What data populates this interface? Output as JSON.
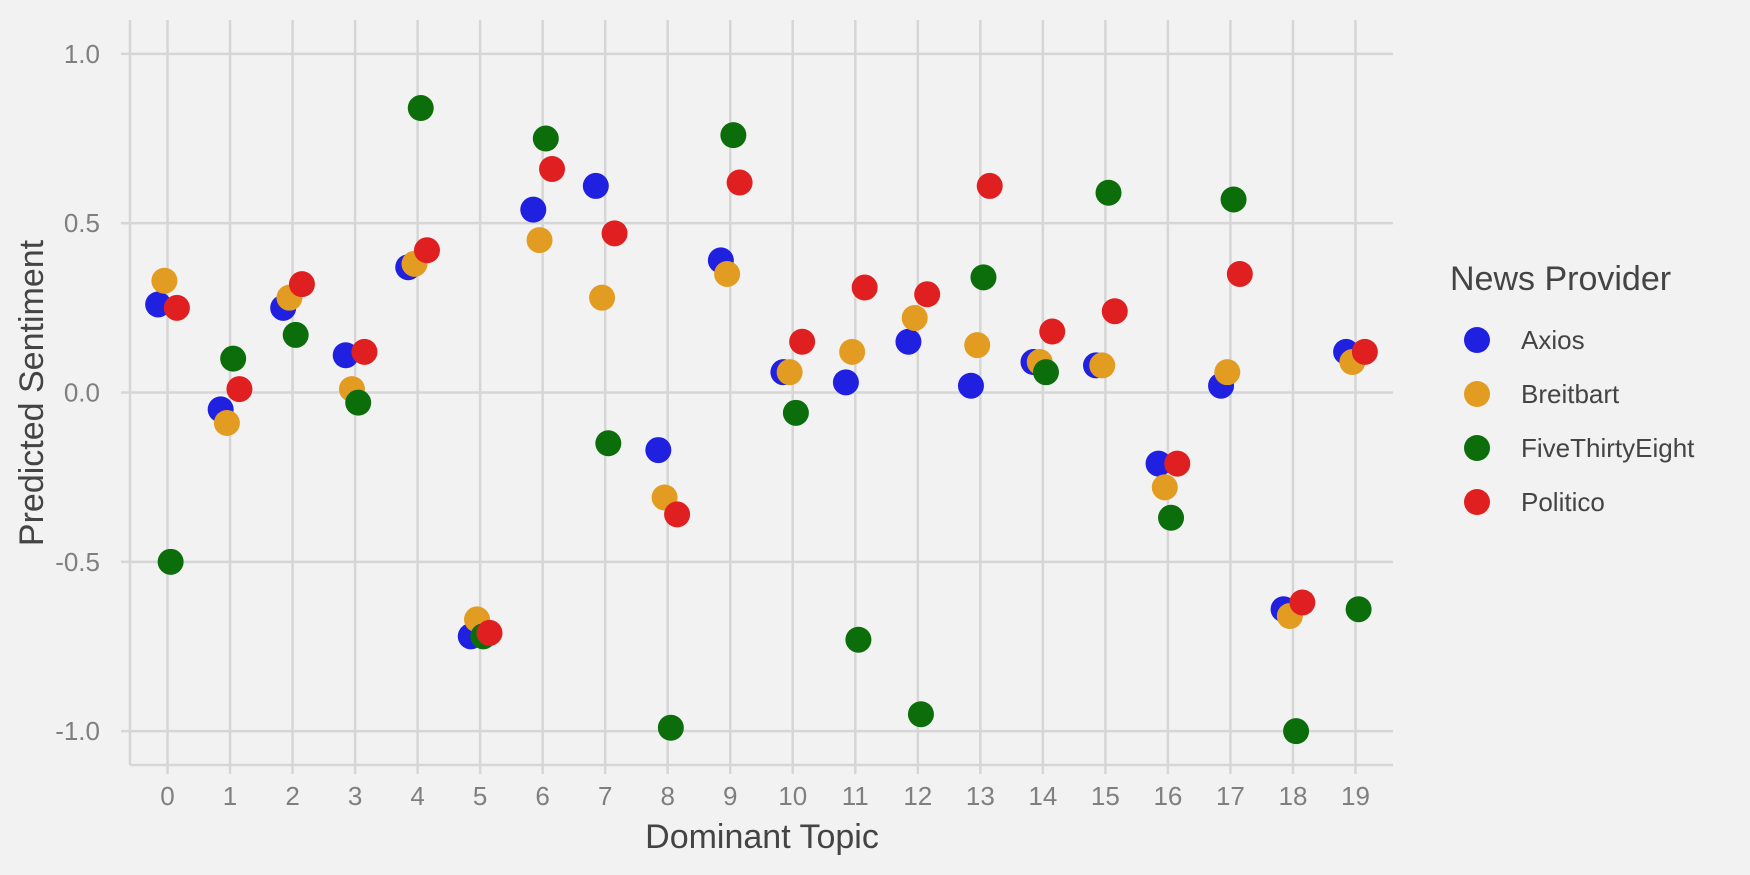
{
  "chart_data": {
    "type": "scatter",
    "title": "",
    "xlabel": "Dominant Topic",
    "ylabel": "Predicted Sentiment",
    "x_ticks": [
      "0",
      "1",
      "2",
      "3",
      "4",
      "5",
      "6",
      "7",
      "8",
      "9",
      "10",
      "11",
      "12",
      "13",
      "14",
      "15",
      "16",
      "17",
      "18",
      "19"
    ],
    "y_ticks": [
      "-1.0",
      "-0.5",
      "0.0",
      "0.5",
      "1.0"
    ],
    "ylim": [
      -1.1,
      1.1
    ],
    "xlim": [
      -0.6,
      19.6
    ],
    "grid": true,
    "legend": {
      "title": "News Provider",
      "position": "right"
    },
    "series": [
      {
        "name": "Axios",
        "color": "#2020e0",
        "x": [
          0,
          1,
          2,
          3,
          4,
          5,
          6,
          7,
          8,
          9,
          10,
          11,
          12,
          13,
          14,
          15,
          16,
          17,
          18,
          19
        ],
        "y": [
          0.26,
          -0.05,
          0.25,
          0.11,
          0.37,
          -0.72,
          0.54,
          0.61,
          -0.17,
          0.39,
          0.06,
          0.03,
          0.15,
          0.02,
          0.09,
          0.08,
          -0.21,
          0.02,
          -0.64,
          0.12
        ]
      },
      {
        "name": "Breitbart",
        "color": "#e39c22",
        "x": [
          0,
          1,
          2,
          3,
          4,
          5,
          6,
          7,
          8,
          9,
          10,
          11,
          12,
          13,
          14,
          15,
          16,
          17,
          18,
          19
        ],
        "y": [
          0.33,
          -0.09,
          0.28,
          0.01,
          0.38,
          -0.67,
          0.45,
          0.28,
          -0.31,
          0.35,
          0.06,
          0.12,
          0.22,
          0.14,
          0.09,
          0.08,
          -0.28,
          0.06,
          -0.66,
          0.09
        ]
      },
      {
        "name": "FiveThirtyEight",
        "color": "#0b6e0b",
        "x": [
          0,
          1,
          2,
          3,
          4,
          5,
          6,
          7,
          8,
          9,
          10,
          11,
          12,
          13,
          14,
          15,
          16,
          17,
          18,
          19
        ],
        "y": [
          -0.5,
          0.1,
          0.17,
          -0.03,
          0.84,
          -0.72,
          0.75,
          -0.15,
          -0.99,
          0.76,
          -0.06,
          -0.73,
          -0.95,
          0.34,
          0.06,
          0.59,
          -0.37,
          0.57,
          -1.0,
          -0.64
        ]
      },
      {
        "name": "Politico",
        "color": "#e02020",
        "x": [
          0,
          1,
          2,
          3,
          4,
          5,
          6,
          7,
          8,
          9,
          10,
          11,
          12,
          13,
          14,
          15,
          16,
          17,
          18,
          19
        ],
        "y": [
          0.25,
          0.01,
          0.32,
          0.12,
          0.42,
          -0.71,
          0.66,
          0.47,
          -0.36,
          0.62,
          0.15,
          0.31,
          0.29,
          0.61,
          0.18,
          0.24,
          -0.21,
          0.35,
          -0.62,
          0.12
        ]
      }
    ]
  }
}
